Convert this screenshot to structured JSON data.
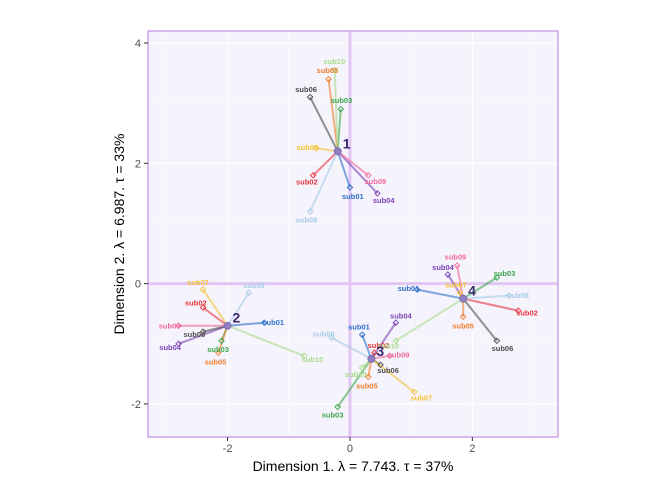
{
  "chart_data": {
    "type": "scatter",
    "title": "",
    "xlabel": "Dimension 1.   λ = 7.743.  τ = 37%",
    "ylabel": "Dimension 2.   λ = 6.987.  τ = 33%",
    "xlim": [
      -3.3,
      3.4
    ],
    "ylim": [
      -2.55,
      4.2
    ],
    "xticks": [
      {
        "value": -2,
        "label": "-2"
      },
      {
        "value": 0,
        "label": "0"
      },
      {
        "value": 2,
        "label": "2"
      }
    ],
    "yticks": [
      {
        "value": -2,
        "label": "-2"
      },
      {
        "value": 0,
        "label": "0"
      },
      {
        "value": 2,
        "label": "2"
      },
      {
        "value": 4,
        "label": "4"
      }
    ],
    "grid": true,
    "legend": "none",
    "colors": {
      "panel_background": "#f5f3fc",
      "panel_border": "#c38ee6",
      "grid_major": "#ffffff",
      "zero_lines": "#e2c5f3",
      "centroid": "#8f7fc2",
      "centroid_label": "#3a2a6e"
    },
    "subject_colors": {
      "sub01": "#2f6fc9",
      "sub02": "#e8333a",
      "sub03": "#3aa64a",
      "sub04": "#7a3fb5",
      "sub05": "#f07d2a",
      "sub06": "#4d4d4d",
      "sub07": "#f7c233",
      "sub08": "#a7cdea",
      "sub09": "#f06a9c",
      "sub10": "#a9dc8a"
    },
    "centroids": [
      {
        "label": "1",
        "x": -0.2,
        "y": 2.2,
        "points": [
          {
            "sub": "sub01",
            "x": 0.0,
            "y": 1.6
          },
          {
            "sub": "sub02",
            "x": -0.6,
            "y": 1.8
          },
          {
            "sub": "sub03",
            "x": -0.15,
            "y": 2.9
          },
          {
            "sub": "sub04",
            "x": 0.45,
            "y": 1.5
          },
          {
            "sub": "sub05",
            "x": -0.35,
            "y": 3.4
          },
          {
            "sub": "sub06",
            "x": -0.65,
            "y": 3.1
          },
          {
            "sub": "sub07",
            "x": -0.55,
            "y": 2.25
          },
          {
            "sub": "sub08",
            "x": -0.65,
            "y": 1.2
          },
          {
            "sub": "sub09",
            "x": 0.3,
            "y": 1.8
          },
          {
            "sub": "sub10",
            "x": -0.25,
            "y": 3.55
          }
        ]
      },
      {
        "label": "2",
        "x": -2.0,
        "y": -0.7,
        "points": [
          {
            "sub": "sub01",
            "x": -1.4,
            "y": -0.65
          },
          {
            "sub": "sub02",
            "x": -2.4,
            "y": -0.4
          },
          {
            "sub": "sub03",
            "x": -2.1,
            "y": -0.95
          },
          {
            "sub": "sub04",
            "x": -2.8,
            "y": -1.0
          },
          {
            "sub": "sub05",
            "x": -2.15,
            "y": -1.15
          },
          {
            "sub": "sub06",
            "x": -2.4,
            "y": -0.8
          },
          {
            "sub": "sub07",
            "x": -2.4,
            "y": -0.1
          },
          {
            "sub": "sub08",
            "x": -1.65,
            "y": -0.15
          },
          {
            "sub": "sub09",
            "x": -2.8,
            "y": -0.7
          },
          {
            "sub": "sub10",
            "x": -0.75,
            "y": -1.2
          }
        ]
      },
      {
        "label": "3",
        "x": 0.35,
        "y": -1.25,
        "points": [
          {
            "sub": "sub01",
            "x": 0.2,
            "y": -0.85
          },
          {
            "sub": "sub02",
            "x": 0.4,
            "y": -1.15
          },
          {
            "sub": "sub03",
            "x": -0.2,
            "y": -2.05
          },
          {
            "sub": "sub04",
            "x": 0.75,
            "y": -0.65
          },
          {
            "sub": "sub05",
            "x": 0.3,
            "y": -1.55
          },
          {
            "sub": "sub06",
            "x": 0.5,
            "y": -1.35
          },
          {
            "sub": "sub07",
            "x": 1.05,
            "y": -1.8
          },
          {
            "sub": "sub08",
            "x": -0.3,
            "y": -0.9
          },
          {
            "sub": "sub09",
            "x": 0.65,
            "y": -1.2
          },
          {
            "sub": "sub10",
            "x": 0.2,
            "y": -1.4
          }
        ]
      },
      {
        "label": "4",
        "x": 1.85,
        "y": -0.25,
        "points": [
          {
            "sub": "sub01",
            "x": 1.1,
            "y": -0.1
          },
          {
            "sub": "sub02",
            "x": 2.75,
            "y": -0.45
          },
          {
            "sub": "sub03",
            "x": 2.4,
            "y": 0.1
          },
          {
            "sub": "sub04",
            "x": 1.6,
            "y": 0.15
          },
          {
            "sub": "sub05",
            "x": 1.85,
            "y": -0.55
          },
          {
            "sub": "sub06",
            "x": 2.4,
            "y": -0.95
          },
          {
            "sub": "sub07",
            "x": 1.8,
            "y": -0.15
          },
          {
            "sub": "sub08",
            "x": 2.6,
            "y": -0.2
          },
          {
            "sub": "sub09",
            "x": 1.75,
            "y": 0.3
          },
          {
            "sub": "sub10",
            "x": 0.75,
            "y": -0.95
          }
        ]
      }
    ]
  }
}
